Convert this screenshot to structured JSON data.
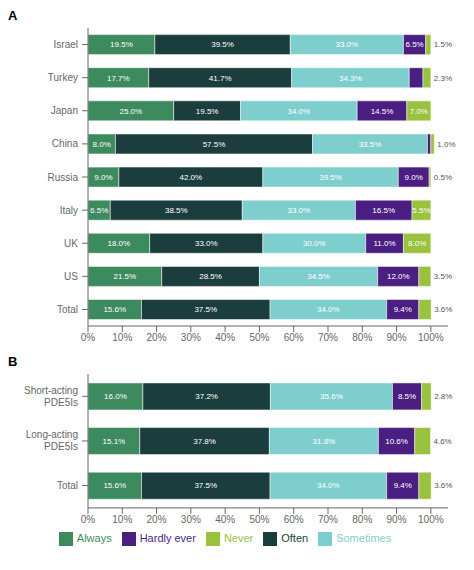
{
  "chart_data": [
    {
      "type": "bar",
      "title": "A",
      "orientation": "horizontal",
      "stacked": true,
      "grid": false,
      "data_labels": true,
      "categories": [
        "Israel",
        "Turkey",
        "Japan",
        "China",
        "Russia",
        "Italy",
        "UK",
        "US",
        "Total"
      ],
      "xlim": [
        0,
        105
      ],
      "xticks": [
        {
          "value": 0,
          "label": "0%"
        },
        {
          "value": 10,
          "label": "10%"
        },
        {
          "value": 20,
          "label": "20%"
        },
        {
          "value": 30,
          "label": "30%"
        },
        {
          "value": 40,
          "label": "40%"
        },
        {
          "value": 50,
          "label": "50%"
        },
        {
          "value": 60,
          "label": "60%"
        },
        {
          "value": 70,
          "label": "70%"
        },
        {
          "value": 80,
          "label": "80%"
        },
        {
          "value": 90,
          "label": "90%"
        },
        {
          "value": 100,
          "label": "100%"
        }
      ],
      "series": [
        {
          "name": "Always",
          "color": "#3d8a5f",
          "values": [
            19.5,
            17.7,
            25.0,
            8.0,
            9.0,
            6.5,
            18.0,
            21.5,
            15.6
          ],
          "value_labels": [
            "19.5%",
            "17.7%",
            "25.0%",
            "8.0%",
            "9.0%",
            "6.5%",
            "18.0%",
            "21.5%",
            "15.6%"
          ]
        },
        {
          "name": "Often",
          "color": "#1c3d3d",
          "values": [
            39.5,
            41.7,
            19.5,
            57.5,
            42.0,
            38.5,
            33.0,
            28.5,
            37.5
          ],
          "value_labels": [
            "39.5%",
            "41.7%",
            "19.5%",
            "57.5%",
            "42.0%",
            "38.5%",
            "33.0%",
            "28.5%",
            "37.5%"
          ]
        },
        {
          "name": "Sometimes",
          "color": "#7ecece",
          "values": [
            33.0,
            34.3,
            34.0,
            33.5,
            39.5,
            33.0,
            30.0,
            34.5,
            34.0
          ],
          "value_labels": [
            "33.0%",
            "34.3%",
            "34.0%",
            "33.5%",
            "39.5%",
            "33.0%",
            "30.0%",
            "34.5%",
            "34.0%"
          ]
        },
        {
          "name": "Hardly ever",
          "color": "#4b1f82",
          "values": [
            6.5,
            4.0,
            14.5,
            1.0,
            9.0,
            16.5,
            11.0,
            12.0,
            9.4
          ],
          "value_labels": [
            "6.5%",
            null,
            "14.5%",
            null,
            "9.0%",
            "16.5%",
            "11.0%",
            "12.0%",
            "9.4%"
          ]
        },
        {
          "name": "Never",
          "color": "#99c23e",
          "values": [
            1.5,
            2.3,
            7.0,
            1.0,
            0.5,
            5.5,
            8.0,
            3.5,
            3.6
          ],
          "value_labels": [
            "1.5%",
            "2.3%",
            "7.0%",
            "1.0%",
            "0.5%",
            "5.5%",
            "8.0%",
            "3.5%",
            "3.6%"
          ]
        }
      ]
    },
    {
      "type": "bar",
      "title": "B",
      "orientation": "horizontal",
      "stacked": true,
      "grid": false,
      "data_labels": true,
      "legend": "bottom",
      "categories": [
        "Short-acting\nPDE5Is",
        "Long-acting\nPDE5Is",
        "Total"
      ],
      "xlim": [
        0,
        105
      ],
      "xticks": [
        {
          "value": 0,
          "label": "0%"
        },
        {
          "value": 10,
          "label": "10%"
        },
        {
          "value": 20,
          "label": "20%"
        },
        {
          "value": 30,
          "label": "30%"
        },
        {
          "value": 40,
          "label": "40%"
        },
        {
          "value": 50,
          "label": "50%"
        },
        {
          "value": 60,
          "label": "60%"
        },
        {
          "value": 70,
          "label": "70%"
        },
        {
          "value": 80,
          "label": "80%"
        },
        {
          "value": 90,
          "label": "90%"
        },
        {
          "value": 100,
          "label": "100%"
        }
      ],
      "series": [
        {
          "name": "Always",
          "color": "#3d8a5f",
          "values": [
            16.0,
            15.1,
            15.6
          ],
          "value_labels": [
            "16.0%",
            "15.1%",
            "15.6%"
          ]
        },
        {
          "name": "Often",
          "color": "#1c3d3d",
          "values": [
            37.2,
            37.8,
            37.5
          ],
          "value_labels": [
            "37.2%",
            "37.8%",
            "37.5%"
          ]
        },
        {
          "name": "Sometimes",
          "color": "#7ecece",
          "values": [
            35.6,
            31.8,
            34.0
          ],
          "value_labels": [
            "35.6%",
            "31.8%",
            "34.0%"
          ]
        },
        {
          "name": "Hardly ever",
          "color": "#4b1f82",
          "values": [
            8.5,
            10.6,
            9.4
          ],
          "value_labels": [
            "8.5%",
            "10.6%",
            "9.4%"
          ]
        },
        {
          "name": "Never",
          "color": "#99c23e",
          "values": [
            2.8,
            4.6,
            3.6
          ],
          "value_labels": [
            "2.8%",
            "4.6%",
            "3.6%"
          ]
        }
      ]
    }
  ]
}
